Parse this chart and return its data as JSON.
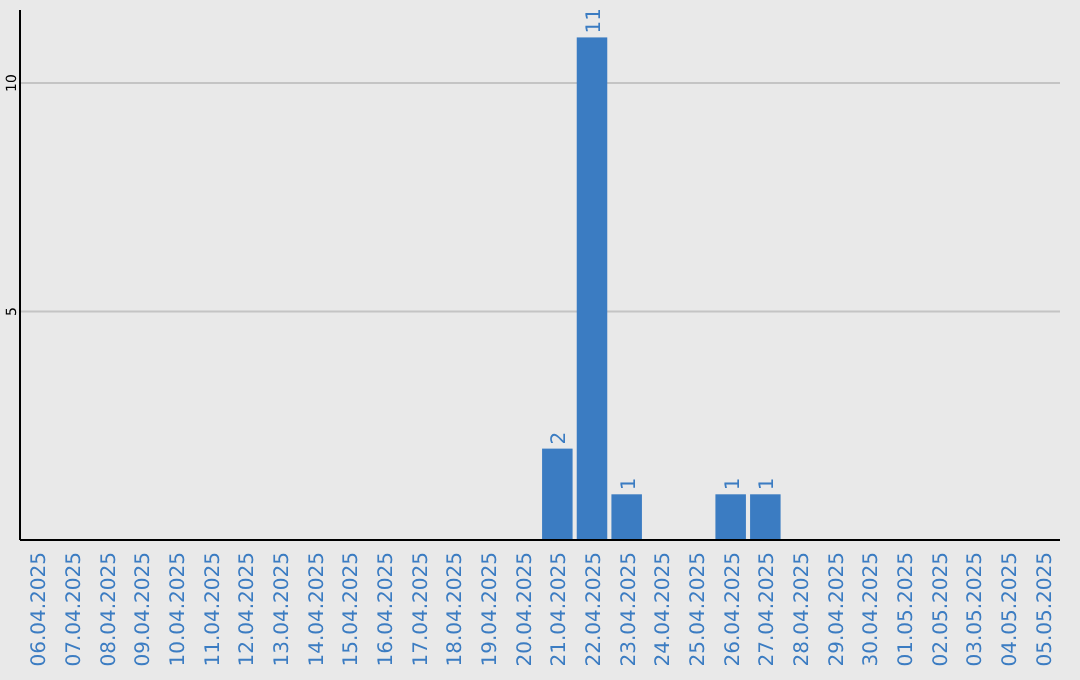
{
  "chart_data": {
    "type": "bar",
    "categories": [
      "06.04.2025",
      "07.04.2025",
      "08.04.2025",
      "09.04.2025",
      "10.04.2025",
      "11.04.2025",
      "12.04.2025",
      "13.04.2025",
      "14.04.2025",
      "15.04.2025",
      "16.04.2025",
      "17.04.2025",
      "18.04.2025",
      "19.04.2025",
      "20.04.2025",
      "21.04.2025",
      "22.04.2025",
      "23.04.2025",
      "24.04.2025",
      "25.04.2025",
      "26.04.2025",
      "27.04.2025",
      "28.04.2025",
      "29.04.2025",
      "30.04.2025",
      "01.05.2025",
      "02.05.2025",
      "03.05.2025",
      "04.05.2025",
      "05.05.2025"
    ],
    "values": [
      0,
      0,
      0,
      0,
      0,
      0,
      0,
      0,
      0,
      0,
      0,
      0,
      0,
      0,
      0,
      2,
      11,
      1,
      0,
      0,
      1,
      1,
      0,
      0,
      0,
      0,
      0,
      0,
      0,
      0
    ],
    "value_labels": [
      null,
      null,
      null,
      null,
      null,
      null,
      null,
      null,
      null,
      null,
      null,
      null,
      null,
      null,
      null,
      "2",
      "11",
      "1",
      null,
      null,
      "1",
      "1",
      null,
      null,
      null,
      null,
      null,
      null,
      null,
      null
    ],
    "color": "#3b7cc2",
    "ylim": [
      0,
      11.6
    ],
    "yticks": [
      5,
      10
    ],
    "grid": "y"
  }
}
